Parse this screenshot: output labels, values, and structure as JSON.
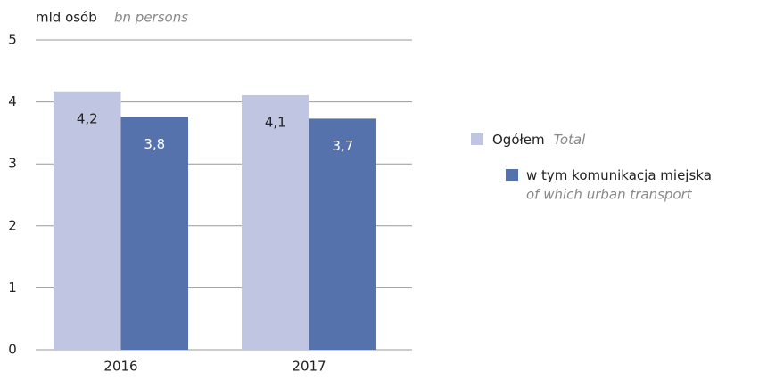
{
  "chart_data": {
    "type": "bar",
    "y_label": "mld osób",
    "y_label_en": "bn persons",
    "categories": [
      "2016",
      "2017"
    ],
    "series": [
      {
        "name": "Ogółem",
        "name_en": "Total",
        "color": "#c0c5e2",
        "values": [
          4.17,
          4.11
        ],
        "value_labels": [
          "4,2",
          "4,1"
        ]
      },
      {
        "name": "w tym komunikacja miejska",
        "name_en": "of which urban transport",
        "color": "#5572ad",
        "values": [
          3.76,
          3.73
        ],
        "value_labels": [
          "3,8",
          "3,7"
        ]
      }
    ],
    "ylim": [
      0,
      5
    ],
    "yticks": [
      0,
      1,
      2,
      3,
      4,
      5
    ],
    "grid": true,
    "legend": "right"
  }
}
